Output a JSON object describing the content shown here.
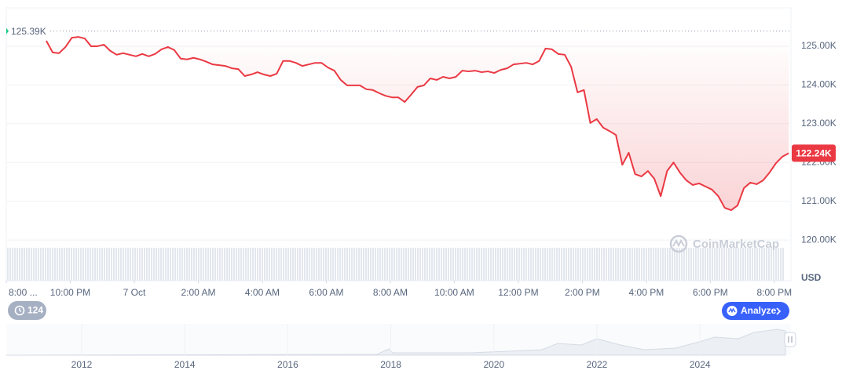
{
  "chart_data": {
    "type": "line",
    "x": [
      1.25,
      1.45,
      1.65,
      1.85,
      2.05,
      2.25,
      2.45,
      2.65,
      2.85,
      3.05,
      3.25,
      3.45,
      3.65,
      3.85,
      4.05,
      4.25,
      4.45,
      4.65,
      4.85,
      5.05,
      5.25,
      5.45,
      5.65,
      5.85,
      6.05,
      6.25,
      6.45,
      6.65,
      6.85,
      7.05,
      7.25,
      7.45,
      7.65,
      7.85,
      8.05,
      8.25,
      8.45,
      8.65,
      8.85,
      9.05,
      9.25,
      9.45,
      9.65,
      9.85,
      10.05,
      10.25,
      10.45,
      10.65,
      10.85,
      11.05,
      11.25,
      11.45,
      11.65,
      11.85,
      12.05,
      12.25,
      12.45,
      12.65,
      12.85,
      13.05,
      13.25,
      13.45,
      13.65,
      13.85,
      14.05,
      14.25,
      14.45,
      14.65,
      14.85,
      15.05,
      15.25,
      15.45,
      15.65,
      15.85,
      16.05,
      16.25,
      16.45,
      16.65,
      16.85,
      17.05,
      17.25,
      17.45,
      17.65,
      17.85,
      18.05,
      18.25,
      18.45,
      18.65,
      18.85,
      19.05,
      19.25,
      19.45,
      19.65,
      19.85,
      20.05,
      20.25,
      20.45,
      20.65,
      20.85,
      21.05,
      21.25,
      21.45,
      21.65,
      21.85,
      22.05,
      22.25,
      22.45,
      22.65,
      22.85,
      23.05,
      23.25,
      23.45,
      23.65,
      23.85,
      24.05,
      24.25,
      24.45
    ],
    "values": [
      125140,
      124840,
      124820,
      124980,
      125220,
      125240,
      125200,
      125000,
      125000,
      125040,
      124880,
      124780,
      124820,
      124780,
      124740,
      124800,
      124740,
      124800,
      124920,
      124980,
      124900,
      124680,
      124660,
      124700,
      124660,
      124600,
      124530,
      124510,
      124490,
      124430,
      124410,
      124230,
      124270,
      124330,
      124270,
      124230,
      124290,
      124620,
      124620,
      124570,
      124490,
      124530,
      124570,
      124570,
      124450,
      124370,
      124130,
      123990,
      123990,
      123990,
      123890,
      123870,
      123790,
      123720,
      123680,
      123680,
      123560,
      123750,
      123950,
      123990,
      124170,
      124130,
      124210,
      124170,
      124210,
      124370,
      124350,
      124370,
      124330,
      124350,
      124310,
      124390,
      124430,
      124530,
      124550,
      124570,
      124530,
      124620,
      124940,
      124920,
      124800,
      124780,
      124470,
      123810,
      123870,
      123020,
      123120,
      122900,
      122810,
      122710,
      121940,
      122250,
      121700,
      121640,
      121780,
      121580,
      121130,
      121780,
      122000,
      121740,
      121540,
      121420,
      121460,
      121380,
      121300,
      121130,
      120830,
      120770,
      120890,
      121340,
      121480,
      121440,
      121540,
      121740,
      121980,
      122150,
      122240
    ],
    "color": "#ea3943",
    "xlim": [
      0,
      24.47
    ],
    "xticks": [
      {
        "value": 0,
        "label": "8:00 ..."
      },
      {
        "value": 2,
        "label": "10:00 PM"
      },
      {
        "value": 4,
        "label": "7 Oct"
      },
      {
        "value": 6,
        "label": "2:00 AM"
      },
      {
        "value": 8,
        "label": "4:00 AM"
      },
      {
        "value": 10,
        "label": "6:00 AM"
      },
      {
        "value": 12,
        "label": "8:00 AM"
      },
      {
        "value": 14,
        "label": "10:00 AM"
      },
      {
        "value": 16,
        "label": "12:00 PM"
      },
      {
        "value": 18,
        "label": "2:00 PM"
      },
      {
        "value": 20,
        "label": "4:00 PM"
      },
      {
        "value": 22,
        "label": "6:00 PM"
      },
      {
        "value": 24,
        "label": "8:00 PM"
      }
    ],
    "ylim": [
      118950,
      125990
    ],
    "yticks": [
      {
        "value": 120000,
        "label": "120.00K"
      },
      {
        "value": 121000,
        "label": "121.00K"
      },
      {
        "value": 122000,
        "label": "122.00K"
      },
      {
        "value": 123000,
        "label": "123.00K"
      },
      {
        "value": 124000,
        "label": "124.00K"
      },
      {
        "value": 125000,
        "label": "125.00K"
      }
    ],
    "y_unit": "USD",
    "grid": true,
    "high": {
      "value": 125390,
      "label": "125.39K"
    },
    "current": {
      "value": 122240,
      "label": "122.24K"
    },
    "watermark": "CoinMarketCap"
  },
  "controls": {
    "history": 124,
    "analyze": "Analyze"
  },
  "navigator": {
    "years": [
      2012,
      2014,
      2016,
      2018,
      2020,
      2022,
      2024
    ]
  }
}
